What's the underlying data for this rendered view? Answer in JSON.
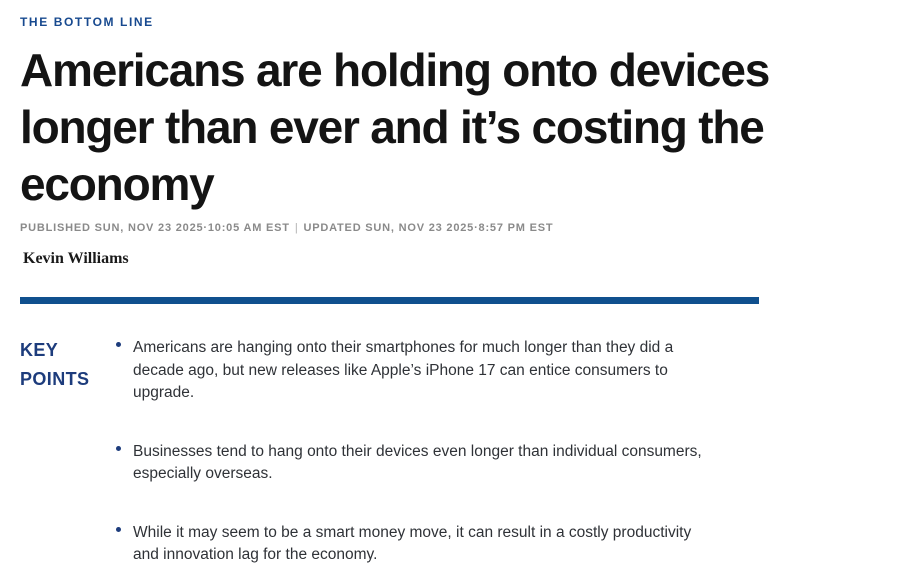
{
  "article": {
    "eyebrow": "THE BOTTOM LINE",
    "headline_lines": [
      "Americans are holding onto devices",
      "longer than ever and it’s costing the",
      "economy"
    ],
    "byline": {
      "published": "PUBLISHED SUN, NOV 23 2025·10:05 AM EST",
      "separator": "|",
      "updated": "UPDATED SUN, NOV 23 2025·8:57 PM EST"
    },
    "author": "Kevin Williams",
    "key_points": {
      "label": "KEY POINTS",
      "bullets": [
        "Americans are hanging onto their smartphones for much longer than they did a decade ago, but new releases like Apple’s iPhone 17 can entice consumers to upgrade.",
        "Businesses tend to hang onto their devices even longer than individual consumers, especially overseas.",
        "While it may seem to be a smart money move, it can result in a costly productivity and innovation lag for the economy."
      ]
    }
  },
  "colors": {
    "eyebrow_blue": "#17498f",
    "headline_text": "#141414",
    "meta_gray": "#8a8a8a",
    "divider_blue": "#10508e",
    "keypoints_navy": "#1d3c7c",
    "body_text": "#2f3237",
    "background": "#ffffff"
  }
}
